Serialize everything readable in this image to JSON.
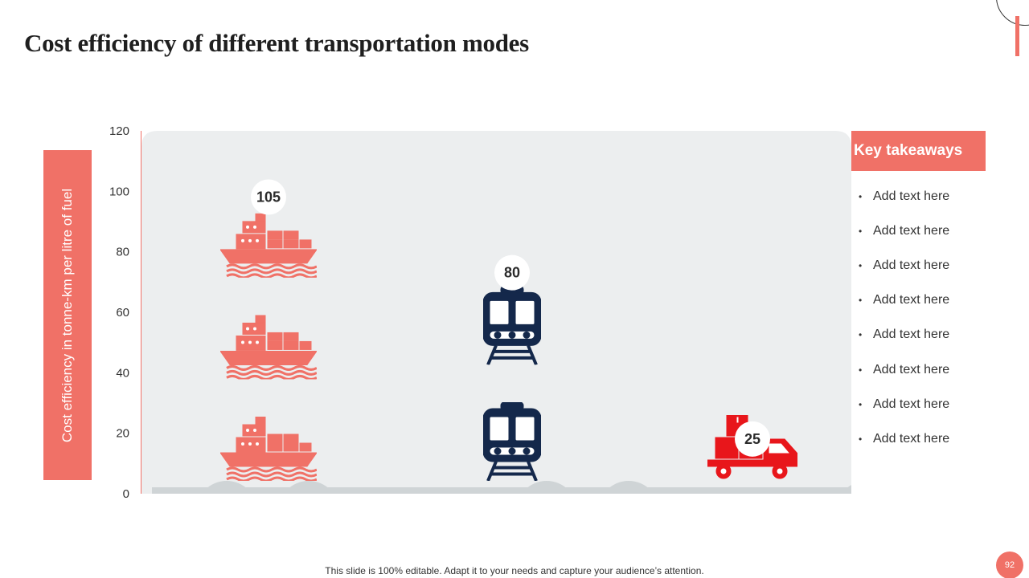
{
  "slide": {
    "title": "Cost efficiency of different transportation modes",
    "footer": "This slide is 100% editable. Adapt it to your needs and capture your audience’s attention.",
    "page_number": "92"
  },
  "colors": {
    "accent": "#f07167",
    "ship": "#f07167",
    "train": "#14284b",
    "truck": "#e8161b",
    "plot_background": "#eceeef"
  },
  "chart_data": {
    "type": "bar",
    "categories": [
      "Ship",
      "Train",
      "Truck"
    ],
    "icons": [
      "ship-icon",
      "train-icon",
      "truck-icon"
    ],
    "values": [
      105,
      80,
      25
    ],
    "value_labels": [
      "105",
      "80",
      "25"
    ],
    "title": "",
    "xlabel": "",
    "ylabel": "Cost efficiency in tonne-km per litre of fuel",
    "ylim": [
      0,
      120
    ],
    "yticks": [
      0,
      20,
      40,
      60,
      80,
      100,
      120
    ],
    "ytick_labels": [
      "0",
      "20",
      "40",
      "60",
      "80",
      "100",
      "120"
    ],
    "icon_stack_counts": [
      3,
      2,
      1
    ]
  },
  "takeaways": {
    "header": "Key takeaways",
    "items": [
      "Add text here",
      "Add text here",
      "Add text here",
      "Add text here",
      "Add text here",
      "Add text here",
      "Add text here",
      "Add text here"
    ]
  }
}
